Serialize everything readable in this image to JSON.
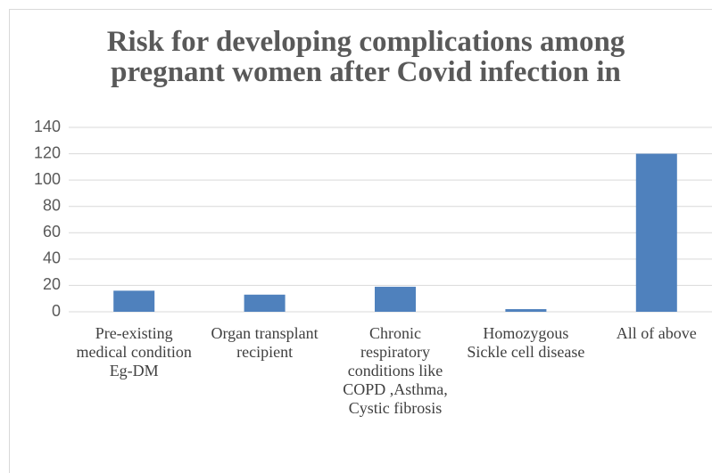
{
  "chart_data": {
    "type": "bar",
    "title": "Risk for developing complications among pregnant women after Covid infection in",
    "categories": [
      "Pre-existing medical condition Eg-DM",
      "Organ transplant recipient",
      "Chronic respiratory conditions like COPD ,Asthma, Cystic fibrosis",
      "Homozygous Sickle cell disease",
      "All of above"
    ],
    "values": [
      16,
      13,
      19,
      2,
      120
    ],
    "color": "#4f81bd",
    "ylim": [
      0,
      140
    ],
    "yticks": [
      0,
      20,
      40,
      60,
      80,
      100,
      120,
      140
    ],
    "grid": true
  }
}
